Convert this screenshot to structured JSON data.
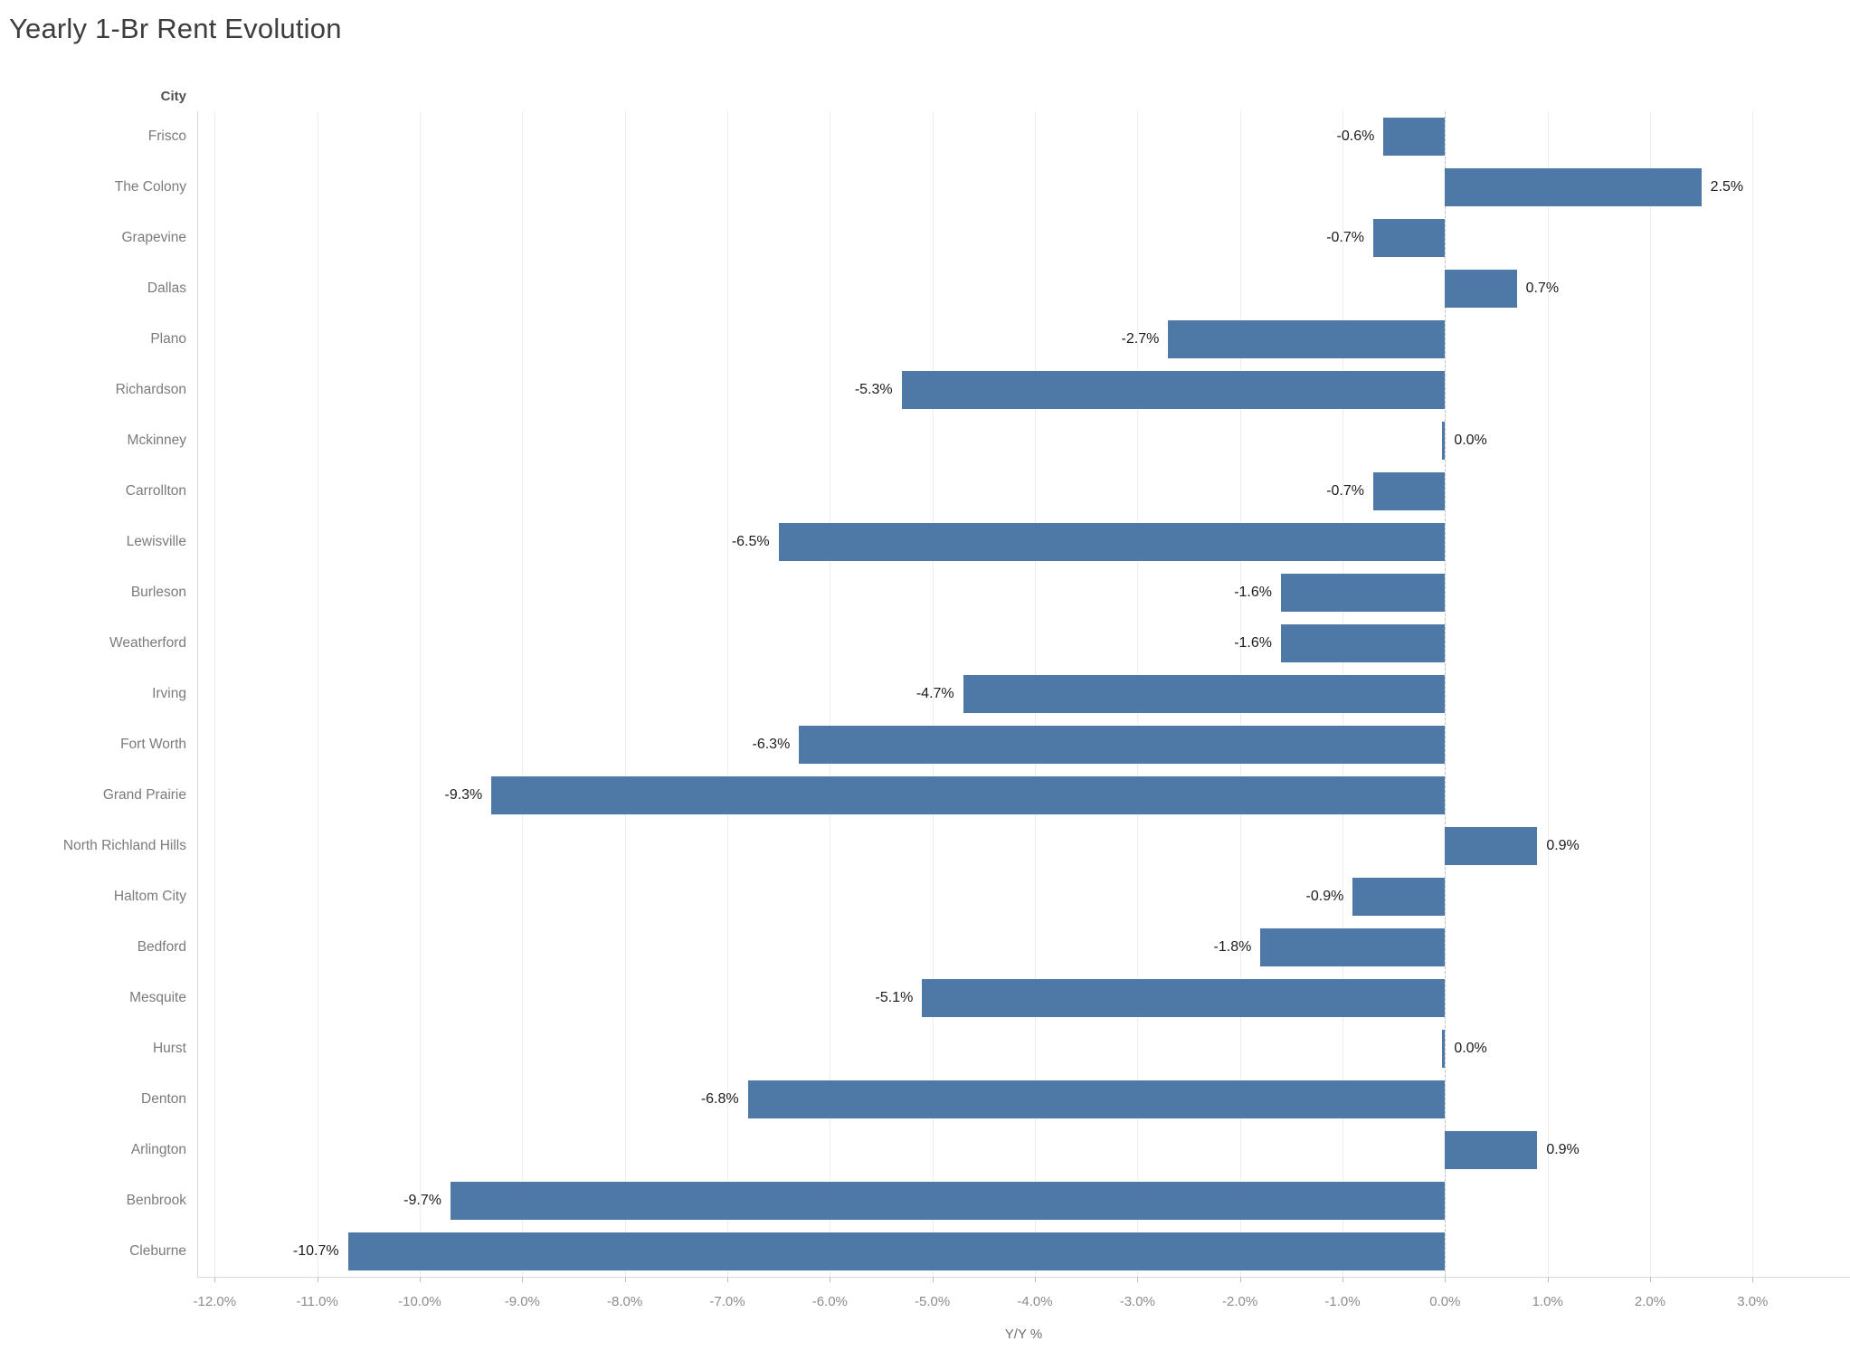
{
  "chart_data": {
    "type": "bar",
    "orientation": "horizontal",
    "title": "Yearly 1-Br Rent Evolution",
    "column_header": "City",
    "xlabel": "Y/Y %",
    "legend": "none",
    "grid": true,
    "zero_line": "dashed",
    "categories": [
      "Frisco",
      "The Colony",
      "Grapevine",
      "Dallas",
      "Plano",
      "Richardson",
      "Mckinney",
      "Carrollton",
      "Lewisville",
      "Burleson",
      "Weatherford",
      "Irving",
      "Fort Worth",
      "Grand Prairie",
      "North Richland Hills",
      "Haltom City",
      "Bedford",
      "Mesquite",
      "Hurst",
      "Denton",
      "Arlington",
      "Benbrook",
      "Cleburne"
    ],
    "values": [
      -0.6,
      2.5,
      -0.7,
      0.7,
      -2.7,
      -5.3,
      0.0,
      -0.7,
      -6.5,
      -1.6,
      -1.6,
      -4.7,
      -6.3,
      -9.3,
      0.9,
      -0.9,
      -1.8,
      -5.1,
      0.0,
      -6.8,
      0.9,
      -9.7,
      -10.7
    ],
    "value_labels": [
      "-0.6%",
      "2.5%",
      "-0.7%",
      "0.7%",
      "-2.7%",
      "-5.3%",
      "0.0%",
      "-0.7%",
      "-6.5%",
      "-1.6%",
      "-1.6%",
      "-4.7%",
      "-6.3%",
      "-9.3%",
      "0.9%",
      "-0.9%",
      "-1.8%",
      "-5.1%",
      "0.0%",
      "-6.8%",
      "0.9%",
      "-9.7%",
      "-10.7%"
    ],
    "xlim": [
      -12.17,
      3.95
    ],
    "x_ticks": [
      {
        "value": -12,
        "label": "-12.0%"
      },
      {
        "value": -11,
        "label": "-11.0%"
      },
      {
        "value": -10,
        "label": "-10.0%"
      },
      {
        "value": -9,
        "label": "-9.0%"
      },
      {
        "value": -8,
        "label": "-8.0%"
      },
      {
        "value": -7,
        "label": "-7.0%"
      },
      {
        "value": -6,
        "label": "-6.0%"
      },
      {
        "value": -5,
        "label": "-5.0%"
      },
      {
        "value": -4,
        "label": "-4.0%"
      },
      {
        "value": -3,
        "label": "-3.0%"
      },
      {
        "value": -2,
        "label": "-2.0%"
      },
      {
        "value": -1,
        "label": "-1.0%"
      },
      {
        "value": 0,
        "label": "0.0%"
      },
      {
        "value": 1,
        "label": "1.0%"
      },
      {
        "value": 2,
        "label": "2.0%"
      },
      {
        "value": 3,
        "label": "3.0%"
      }
    ],
    "colors": {
      "bar": "#4e79a7",
      "value_label": "#1c1c1c",
      "city_label": "#7b7b7b",
      "axis_label": "#8c8c8c",
      "title": "#3d3d3d",
      "header": "#4f4f4f",
      "gridline": "#ededed",
      "zero_line": "#c6c6c6",
      "pane_border": "#d9d9d9",
      "tick_mark": "#bdbdbd",
      "xlabel": "#6f6f6f"
    }
  }
}
